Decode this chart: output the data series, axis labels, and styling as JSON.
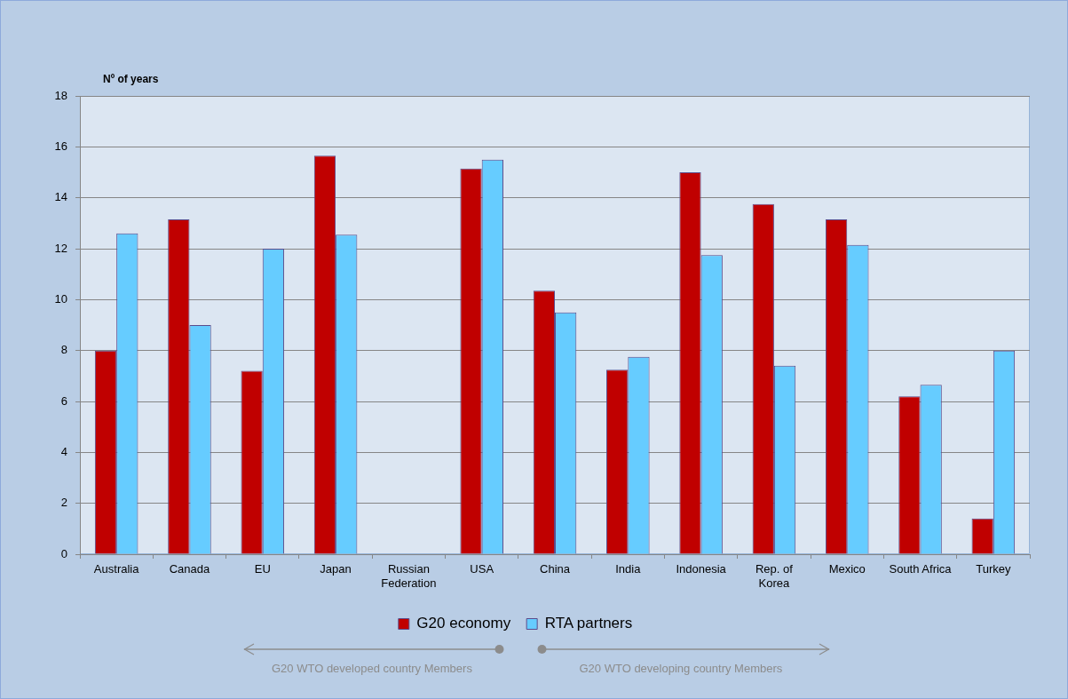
{
  "chart_data": {
    "type": "bar",
    "ylabel": "Nº of years",
    "categories": [
      "Australia",
      "Canada",
      "EU",
      "Japan",
      "Russian Federation",
      "USA",
      "China",
      "India",
      "Indonesia",
      "Rep. of Korea",
      "Mexico",
      "South Africa",
      "Turkey"
    ],
    "series": [
      {
        "name": "G20 economy",
        "color": "#c00000",
        "values": [
          8.0,
          13.15,
          7.2,
          15.65,
          null,
          15.15,
          10.35,
          7.25,
          15.0,
          13.75,
          13.15,
          6.2,
          1.4
        ]
      },
      {
        "name": "RTA partners",
        "color": "#66ccff",
        "values": [
          12.6,
          9.0,
          12.0,
          12.55,
          null,
          15.5,
          9.5,
          7.75,
          11.75,
          7.4,
          12.15,
          6.65,
          8.0
        ]
      }
    ],
    "ylim": [
      0,
      18
    ],
    "yticks": [
      0,
      2,
      4,
      6,
      8,
      10,
      12,
      14,
      16,
      18
    ],
    "grid": "y",
    "legend": "bottom",
    "annotations": [
      "G20 WTO developed country Members",
      "G20 WTO developing country Members"
    ]
  }
}
